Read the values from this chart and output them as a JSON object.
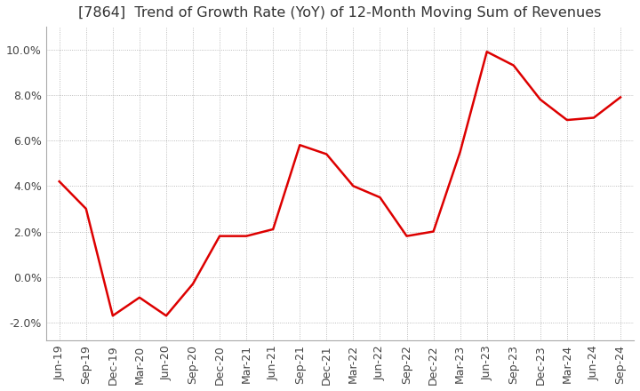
{
  "title": "[7864]  Trend of Growth Rate (YoY) of 12-Month Moving Sum of Revenues",
  "x_labels": [
    "Jun-19",
    "Sep-19",
    "Dec-19",
    "Mar-20",
    "Jun-20",
    "Sep-20",
    "Dec-20",
    "Mar-21",
    "Jun-21",
    "Sep-21",
    "Dec-21",
    "Mar-22",
    "Jun-22",
    "Sep-22",
    "Dec-22",
    "Mar-23",
    "Jun-23",
    "Sep-23",
    "Dec-23",
    "Mar-24",
    "Jun-24",
    "Sep-24"
  ],
  "values": [
    4.2,
    3.0,
    -1.7,
    -0.9,
    -1.7,
    -0.3,
    1.8,
    1.8,
    2.1,
    5.8,
    5.4,
    4.0,
    3.5,
    1.8,
    2.0,
    5.5,
    9.9,
    9.3,
    7.8,
    6.9,
    7.0,
    7.9
  ],
  "line_color": "#dd0000",
  "background_color": "#ffffff",
  "grid_color": "#aaaaaa",
  "ylim": [
    -2.8,
    11.0
  ],
  "yticks": [
    -2.0,
    0.0,
    2.0,
    4.0,
    6.0,
    8.0,
    10.0
  ],
  "title_fontsize": 11.5,
  "tick_fontsize": 9
}
